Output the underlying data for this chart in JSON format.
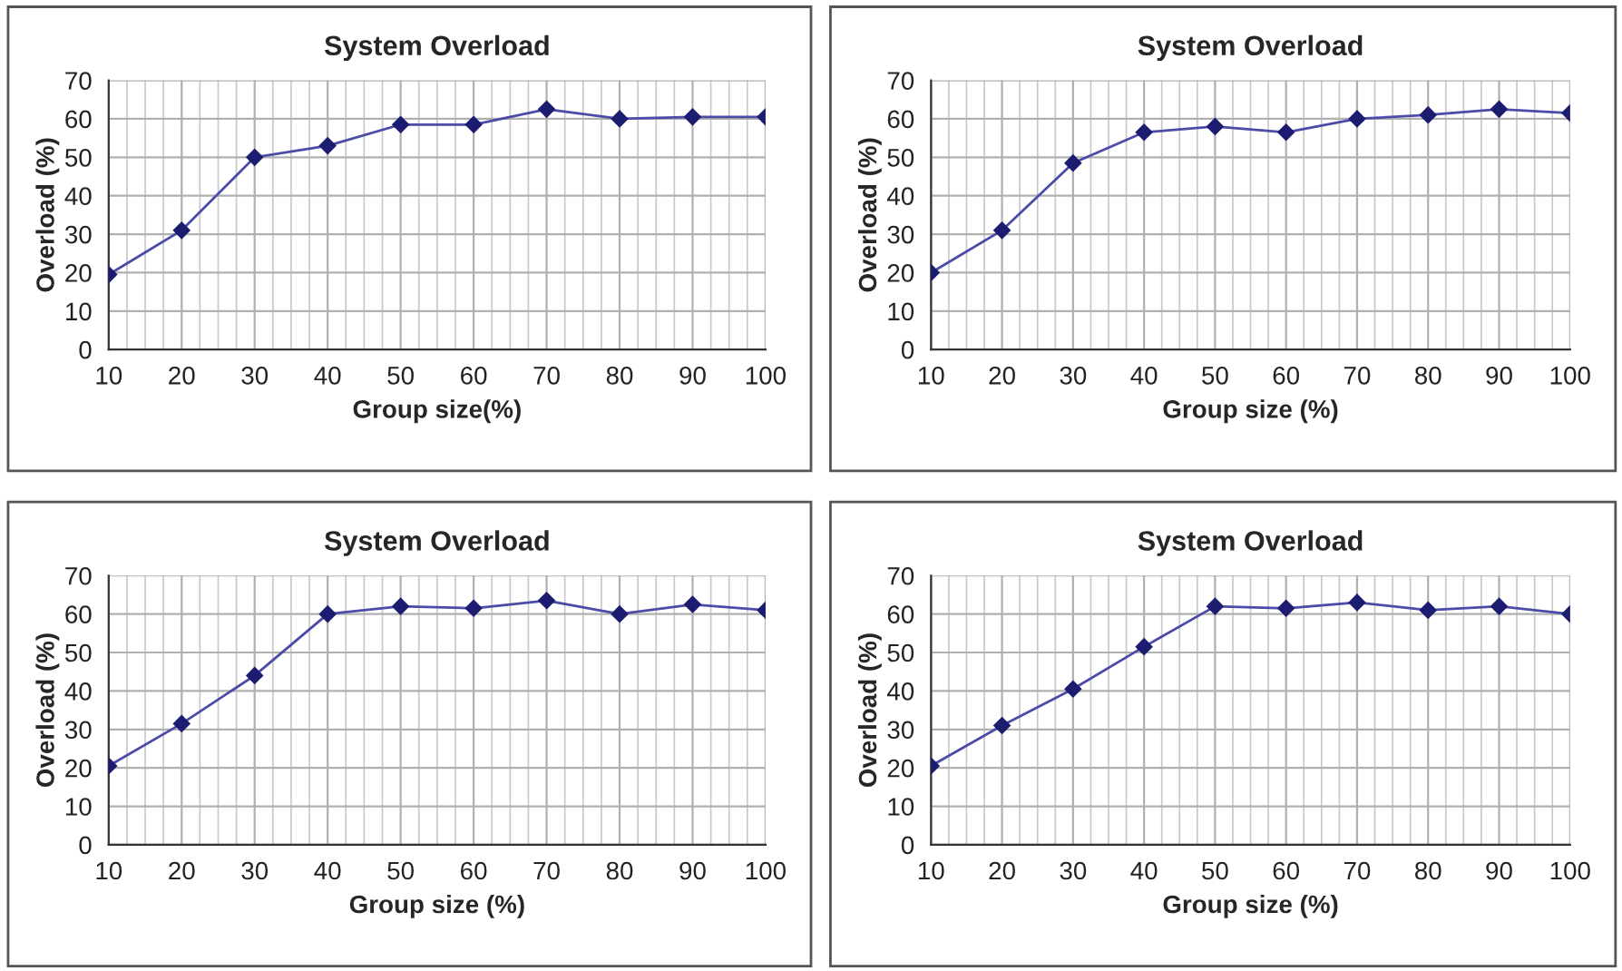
{
  "chart_data": [
    {
      "type": "line",
      "title": "System Overload",
      "xlabel": "Group size(%)",
      "ylabel": "Overload (%)",
      "x": [
        10,
        20,
        30,
        40,
        50,
        60,
        70,
        80,
        90,
        100
      ],
      "xlim": [
        10,
        100
      ],
      "xticks": [
        10,
        20,
        30,
        40,
        50,
        60,
        70,
        80,
        90,
        100
      ],
      "ylim": [
        0,
        70
      ],
      "yticks": [
        0,
        10,
        20,
        30,
        40,
        50,
        60,
        70
      ],
      "grid": true,
      "marker": "diamond",
      "line_style": "solid",
      "series": [
        {
          "color": "#4b4ba8",
          "values": [
            19.5,
            31,
            50,
            53,
            58.5,
            58.5,
            62.5,
            60,
            60.5,
            60.5
          ]
        }
      ]
    },
    {
      "type": "line",
      "title": "System Overload",
      "xlabel": "Group size (%)",
      "ylabel": "Overload (%)",
      "x": [
        10,
        20,
        30,
        40,
        50,
        60,
        70,
        80,
        90,
        100
      ],
      "xlim": [
        10,
        100
      ],
      "xticks": [
        10,
        20,
        30,
        40,
        50,
        60,
        70,
        80,
        90,
        100
      ],
      "ylim": [
        0,
        70
      ],
      "yticks": [
        0,
        10,
        20,
        30,
        40,
        50,
        60,
        70
      ],
      "grid": true,
      "marker": "diamond",
      "line_style": "solid",
      "series": [
        {
          "color": "#4b4ba8",
          "values": [
            20,
            31,
            48.5,
            56.5,
            58,
            56.5,
            60,
            61,
            62.5,
            61.5
          ]
        }
      ]
    },
    {
      "type": "line",
      "title": "System Overload",
      "xlabel": "Group size (%)",
      "ylabel": "Overload (%)",
      "x": [
        10,
        20,
        30,
        40,
        50,
        60,
        70,
        80,
        90,
        100
      ],
      "xlim": [
        10,
        100
      ],
      "xticks": [
        10,
        20,
        30,
        40,
        50,
        60,
        70,
        80,
        90,
        100
      ],
      "ylim": [
        0,
        70
      ],
      "yticks": [
        0,
        10,
        20,
        30,
        40,
        50,
        60,
        70
      ],
      "grid": true,
      "marker": "diamond",
      "line_style": "solid",
      "series": [
        {
          "color": "#4b4ba8",
          "values": [
            20.5,
            31.5,
            44,
            60,
            62,
            61.5,
            63.5,
            60,
            62.5,
            61
          ]
        }
      ]
    },
    {
      "type": "line",
      "title": "System Overload",
      "xlabel": "Group size (%)",
      "ylabel": "Overload (%)",
      "x": [
        10,
        20,
        30,
        40,
        50,
        60,
        70,
        80,
        90,
        100
      ],
      "xlim": [
        10,
        100
      ],
      "xticks": [
        10,
        20,
        30,
        40,
        50,
        60,
        70,
        80,
        90,
        100
      ],
      "ylim": [
        0,
        70
      ],
      "yticks": [
        0,
        10,
        20,
        30,
        40,
        50,
        60,
        70
      ],
      "grid": true,
      "marker": "diamond",
      "line_style": "solid",
      "series": [
        {
          "color": "#4b4ba8",
          "values": [
            20.5,
            31,
            40.5,
            51.5,
            62,
            61.5,
            63,
            61,
            62,
            60
          ]
        }
      ]
    }
  ]
}
